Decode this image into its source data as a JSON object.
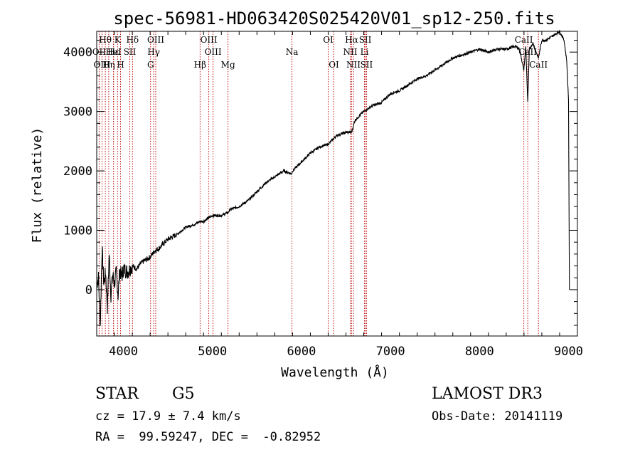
{
  "chart_data": {
    "type": "line",
    "title": "spec-56981-HD063420S025420V01_sp12-250.fits",
    "xlabel": "Wavelength (Å)",
    "ylabel": "Flux (relative)",
    "xlim": [
      3700,
      9100
    ],
    "ylim": [
      -780,
      4350
    ],
    "xticks": [
      4000,
      5000,
      6000,
      7000,
      8000,
      9000
    ],
    "yticks": [
      0,
      1000,
      2000,
      3000,
      4000
    ],
    "xtick_labels": [
      "4000",
      "5000",
      "6000",
      "7000",
      "8000",
      "9000"
    ],
    "ytick_labels": [
      "0",
      "1000",
      "2000",
      "3000",
      "4000"
    ],
    "series": [
      {
        "name": "spectrum",
        "x": [
          3700,
          3720,
          3740,
          3760,
          3780,
          3800,
          3820,
          3840,
          3860,
          3880,
          3900,
          3920,
          3940,
          3960,
          3980,
          4000,
          4050,
          4100,
          4150,
          4200,
          4250,
          4300,
          4350,
          4400,
          4500,
          4600,
          4700,
          4800,
          4861,
          4900,
          4950,
          5000,
          5100,
          5175,
          5200,
          5300,
          5400,
          5500,
          5600,
          5700,
          5800,
          5890,
          5900,
          6000,
          6100,
          6200,
          6300,
          6400,
          6500,
          6563,
          6600,
          6700,
          6800,
          6900,
          7000,
          7100,
          7200,
          7300,
          7400,
          7500,
          7600,
          7700,
          7800,
          7900,
          8000,
          8100,
          8200,
          8300,
          8400,
          8450,
          8498,
          8520,
          8542,
          8560,
          8600,
          8662,
          8700,
          8750,
          8800,
          8850,
          8900,
          8950,
          8980,
          9000,
          9010
        ],
        "y": [
          100,
          200,
          -600,
          700,
          100,
          300,
          -300,
          600,
          -100,
          250,
          100,
          300,
          -100,
          350,
          200,
          350,
          300,
          400,
          350,
          450,
          500,
          550,
          650,
          700,
          850,
          930,
          1050,
          1100,
          1150,
          1150,
          1200,
          1250,
          1250,
          1300,
          1350,
          1400,
          1500,
          1650,
          1800,
          1900,
          2000,
          1950,
          2000,
          2150,
          2300,
          2400,
          2450,
          2600,
          2650,
          2650,
          2850,
          3000,
          3100,
          3150,
          3300,
          3350,
          3450,
          3550,
          3600,
          3700,
          3800,
          3900,
          3950,
          4000,
          4050,
          4000,
          4050,
          4050,
          4100,
          4050,
          3700,
          4100,
          3150,
          4050,
          4150,
          3900,
          4200,
          4200,
          4250,
          4300,
          4350,
          4200,
          3850,
          3200,
          0
        ]
      }
    ],
    "line_markers": [
      {
        "label": "Hθ",
        "wavelength": 3797,
        "row": 0
      },
      {
        "label": "OII",
        "wavelength": 3727,
        "row": 1
      },
      {
        "label": "OIII",
        "wavelength": 3760,
        "row": 2
      },
      {
        "label": "K",
        "wavelength": 3934,
        "row": 0
      },
      {
        "label": "Hε",
        "wavelength": 3889,
        "row": 1
      },
      {
        "label": "Hη",
        "wavelength": 3835,
        "row": 2
      },
      {
        "label": "HeI",
        "wavelength": 3889,
        "row": 1
      },
      {
        "label": "SII",
        "wavelength": 4072,
        "row": 1
      },
      {
        "label": "H",
        "wavelength": 3968,
        "row": 2
      },
      {
        "label": "Hδ",
        "wavelength": 4102,
        "row": 0
      },
      {
        "label": "OIII",
        "wavelength": 4363,
        "row": 0
      },
      {
        "label": "Hγ",
        "wavelength": 4340,
        "row": 1
      },
      {
        "label": "G",
        "wavelength": 4305,
        "row": 2
      },
      {
        "label": "OIII",
        "wavelength": 4959,
        "row": 0
      },
      {
        "label": "OIII",
        "wavelength": 5007,
        "row": 1
      },
      {
        "label": "Hβ",
        "wavelength": 4861,
        "row": 2
      },
      {
        "label": "Mg",
        "wavelength": 5175,
        "row": 2
      },
      {
        "label": "Na",
        "wavelength": 5893,
        "row": 1
      },
      {
        "label": "OI",
        "wavelength": 6300,
        "row": 0
      },
      {
        "label": "OI",
        "wavelength": 6364,
        "row": 2
      },
      {
        "label": "Hα",
        "wavelength": 6563,
        "row": 0
      },
      {
        "label": "SII",
        "wavelength": 6716,
        "row": 0
      },
      {
        "label": "NII",
        "wavelength": 6548,
        "row": 1
      },
      {
        "label": "Li",
        "wavelength": 6708,
        "row": 1
      },
      {
        "label": "NII",
        "wavelength": 6584,
        "row": 2
      },
      {
        "label": "SII",
        "wavelength": 6731,
        "row": 2
      },
      {
        "label": "CaII",
        "wavelength": 8498,
        "row": 0
      },
      {
        "label": "CaII",
        "wavelength": 8542,
        "row": 1
      },
      {
        "label": "CaII",
        "wavelength": 8662,
        "row": 2
      }
    ]
  },
  "info": {
    "class": "STAR",
    "subclass": "G5",
    "survey": "LAMOST DR3",
    "cz": "cz = 17.9 ± 7.4 km/s",
    "obs_date": "Obs-Date: 20141119",
    "coords": "RA =  99.59247, DEC =  -0.82952"
  },
  "colors": {
    "line": "#000000",
    "marker": "#c00000"
  }
}
